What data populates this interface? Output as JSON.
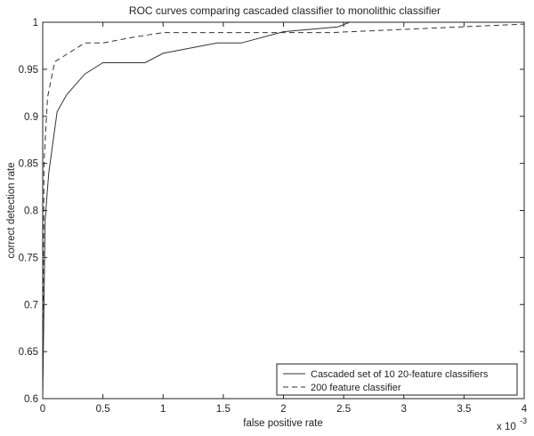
{
  "chart_data": {
    "type": "line",
    "title": "ROC curves comparing cascaded classifier to monolithic classifier",
    "xlabel": "false positive rate",
    "ylabel": "correct detection rate",
    "x_multiplier_label": "x 10",
    "x_multiplier_exponent": "-3",
    "xlim": [
      0,
      4
    ],
    "ylim": [
      0.6,
      1
    ],
    "x_ticks": [
      0,
      0.5,
      1,
      1.5,
      2,
      2.5,
      3,
      3.5,
      4
    ],
    "x_tick_labels": [
      "0",
      "0.5",
      "1",
      "1.5",
      "2",
      "2.5",
      "3",
      "3.5",
      "4"
    ],
    "y_ticks": [
      0.6,
      0.65,
      0.7,
      0.75,
      0.8,
      0.85,
      0.9,
      0.95,
      1
    ],
    "y_tick_labels": [
      "0.6",
      "0.65",
      "0.7",
      "0.75",
      "0.8",
      "0.85",
      "0.9",
      "0.95",
      "1"
    ],
    "grid": false,
    "legend_position": "bottom-right",
    "series": [
      {
        "name": "Cascaded set of 10 20-feature classifiers",
        "line_style": "solid",
        "color": "#333333",
        "points": [
          [
            0,
            0.6
          ],
          [
            0.02,
            0.79
          ],
          [
            0.05,
            0.84
          ],
          [
            0.12,
            0.905
          ],
          [
            0.2,
            0.923
          ],
          [
            0.35,
            0.945
          ],
          [
            0.5,
            0.957
          ],
          [
            0.85,
            0.957
          ],
          [
            1.0,
            0.967
          ],
          [
            1.45,
            0.978
          ],
          [
            1.65,
            0.978
          ],
          [
            2.0,
            0.99
          ],
          [
            2.45,
            0.995
          ],
          [
            2.55,
            1.0
          ]
        ]
      },
      {
        "name": "200 feature classifier",
        "line_style": "dashed",
        "color": "#333333",
        "points": [
          [
            0,
            0.6
          ],
          [
            0.01,
            0.85
          ],
          [
            0.04,
            0.92
          ],
          [
            0.1,
            0.958
          ],
          [
            0.2,
            0.966
          ],
          [
            0.35,
            0.978
          ],
          [
            0.5,
            0.978
          ],
          [
            0.75,
            0.984
          ],
          [
            1.0,
            0.989
          ],
          [
            2.1,
            0.989
          ],
          [
            2.4,
            0.989
          ],
          [
            4.0,
            0.998
          ]
        ]
      }
    ]
  }
}
